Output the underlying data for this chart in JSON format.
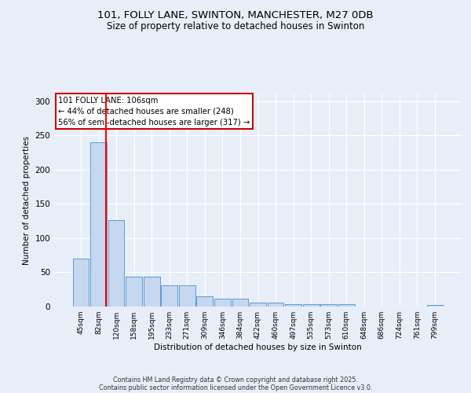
{
  "title_line1": "101, FOLLY LANE, SWINTON, MANCHESTER, M27 0DB",
  "title_line2": "Size of property relative to detached houses in Swinton",
  "xlabel": "Distribution of detached houses by size in Swinton",
  "ylabel": "Number of detached properties",
  "bar_labels": [
    "45sqm",
    "82sqm",
    "120sqm",
    "158sqm",
    "195sqm",
    "233sqm",
    "271sqm",
    "309sqm",
    "346sqm",
    "384sqm",
    "422sqm",
    "460sqm",
    "497sqm",
    "535sqm",
    "573sqm",
    "610sqm",
    "648sqm",
    "686sqm",
    "724sqm",
    "761sqm",
    "799sqm"
  ],
  "bar_values": [
    70,
    240,
    126,
    44,
    44,
    31,
    31,
    15,
    11,
    11,
    6,
    6,
    4,
    4,
    3,
    3,
    0,
    0,
    0,
    0,
    2
  ],
  "bar_color": "#c5d8f0",
  "bar_edge_color": "#5b9bd5",
  "red_line_x": 1.42,
  "annotation_text": "101 FOLLY LANE: 106sqm\n← 44% of detached houses are smaller (248)\n56% of semi-detached houses are larger (317) →",
  "annotation_box_facecolor": "#ffffff",
  "annotation_box_edgecolor": "#cc0000",
  "ylim": [
    0,
    310
  ],
  "yticks": [
    0,
    50,
    100,
    150,
    200,
    250,
    300
  ],
  "footer_line1": "Contains HM Land Registry data © Crown copyright and database right 2025.",
  "footer_line2": "Contains public sector information licensed under the Open Government Licence v3.0.",
  "bg_color": "#e8eef7",
  "plot_bg_color": "#e8eef7"
}
